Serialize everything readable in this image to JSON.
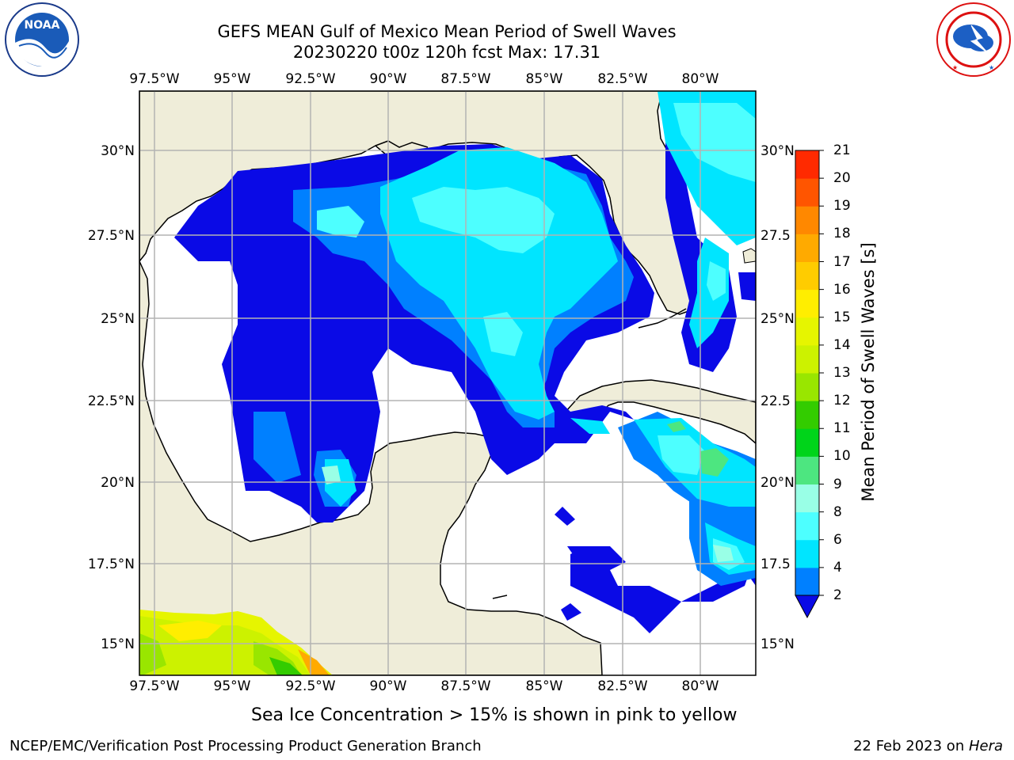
{
  "header": {
    "title_line1": "GEFS MEAN Gulf of Mexico Mean Period of Swell Waves",
    "title_line2": "20230220 t00z 120h fcst   Max: 17.31"
  },
  "logos": {
    "left": {
      "text": "NOAA",
      "ring_text": "NATIONAL OCEANIC AND ATMOSPHERIC ADMINISTRATION · U.S. DEPARTMENT OF COMMERCE"
    },
    "right": {
      "ring_text": "NATIONAL WEATHER SERVICE"
    }
  },
  "map": {
    "lon_labels": [
      "97.5°W",
      "95°W",
      "92.5°W",
      "90°W",
      "87.5°W",
      "85°W",
      "82.5°W",
      "80°W"
    ],
    "lat_labels_left": [
      "30°N",
      "27.5°N",
      "25°N",
      "22.5°N",
      "20°N",
      "17.5°N",
      "15°N"
    ],
    "lat_labels_right": [
      "30°N",
      "27.5",
      "25°N",
      "22.5",
      "20°N",
      "17.5",
      "15°N"
    ],
    "lon_range": [
      -98,
      -79
    ],
    "lat_range": [
      14,
      32
    ],
    "colors": {
      "land": "#efedd9",
      "water_background": "#ffffff",
      "gridline": "#b3b3b3"
    }
  },
  "colorbar": {
    "label": "Mean Period of Swell Waves [s]",
    "ticks": [
      "2",
      "4",
      "6",
      "8",
      "9",
      "10",
      "11",
      "12",
      "13",
      "14",
      "15",
      "16",
      "17",
      "18",
      "19",
      "20",
      "21"
    ],
    "colors": [
      "#0a0ae6",
      "#0080ff",
      "#00e5ff",
      "#4dffff",
      "#99ffe6",
      "#4de680",
      "#00d41a",
      "#33cc00",
      "#99e600",
      "#ccf200",
      "#e6f500",
      "#ffee00",
      "#ffcc00",
      "#ffaa00",
      "#ff8800",
      "#ff5500",
      "#ff2a00",
      "#ff0000"
    ]
  },
  "footer": {
    "note": "Sea Ice Concentration > 15% is shown in pink to yellow",
    "left": "NCEP/EMC/Verification Post Processing Product Generation Branch",
    "right_prefix": "22 Feb 2023 on ",
    "right_italic": "Hera"
  }
}
